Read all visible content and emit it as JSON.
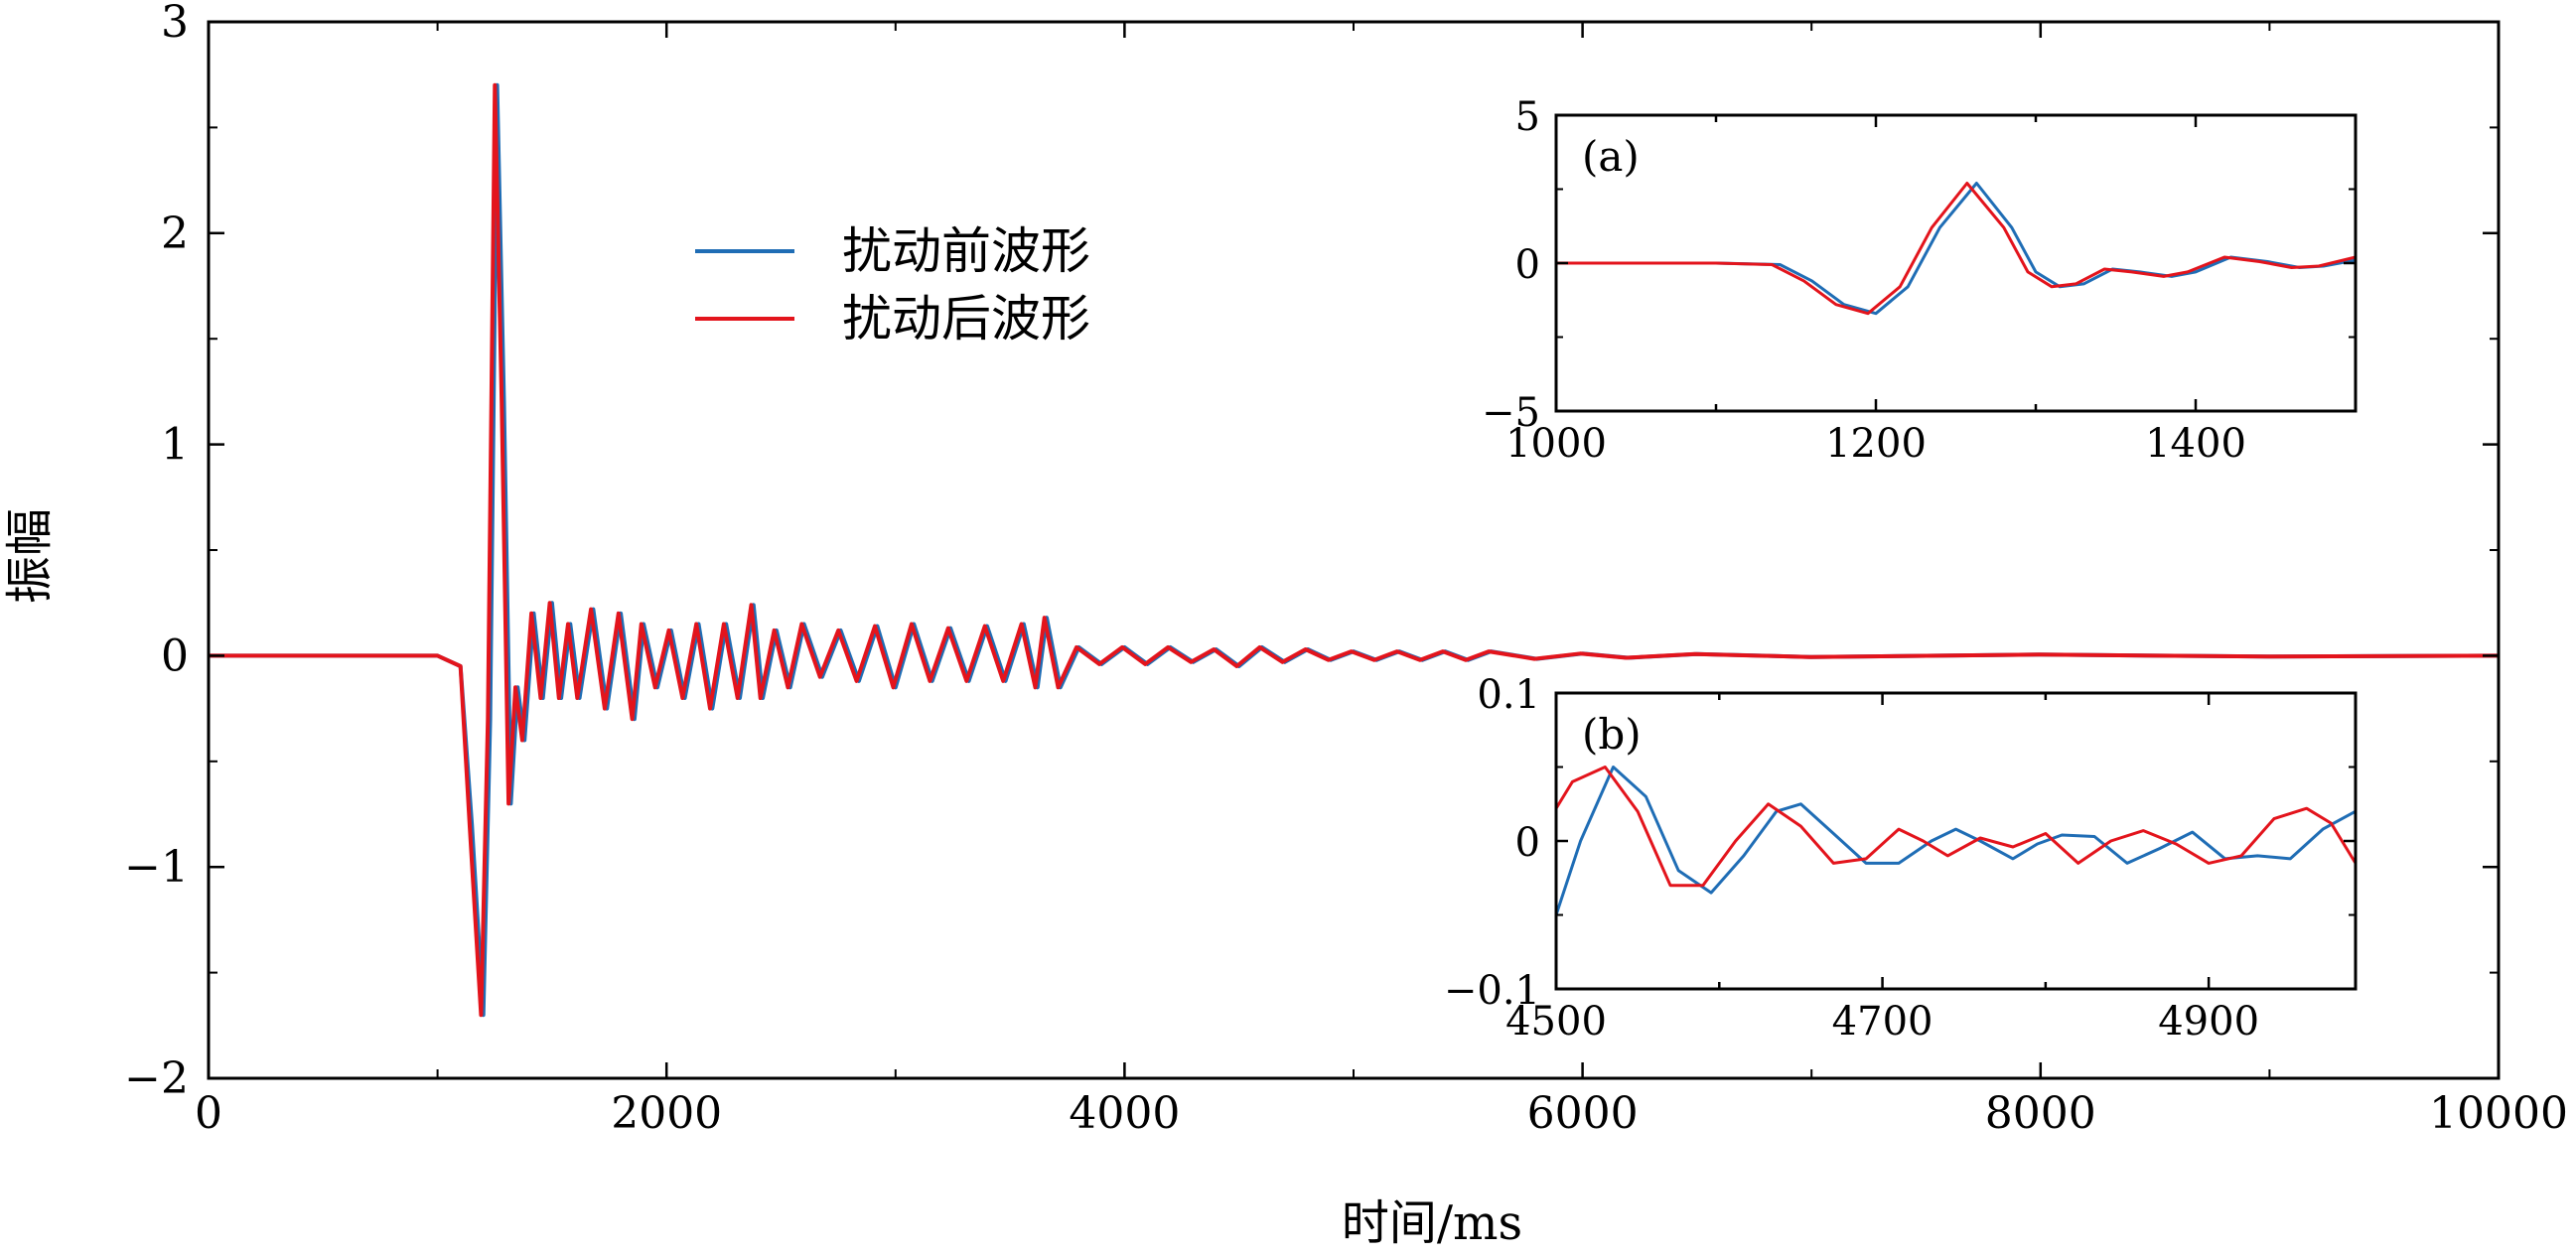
{
  "colors": {
    "before": "#1f6db5",
    "after": "#e3141c",
    "axis": "#000000"
  },
  "chart_data": [
    {
      "id": "main",
      "type": "line",
      "xlabel": "时间/ms",
      "ylabel": "振幅",
      "xlim": [
        0,
        10000
      ],
      "ylim": [
        -2,
        3
      ],
      "xticks": [
        0,
        2000,
        4000,
        6000,
        8000,
        10000
      ],
      "xtick_labels": [
        "0",
        "2000",
        "4000",
        "6000",
        "8000",
        "10000"
      ],
      "yticks": [
        -2,
        -1,
        0,
        1,
        2,
        3
      ],
      "ytick_labels": [
        "−2",
        "−1",
        "0",
        "1",
        "2",
        "3"
      ],
      "grid": false,
      "legend": {
        "position": "upper-center",
        "entries": [
          "扰动前波形",
          "扰动后波形"
        ]
      },
      "series": [
        {
          "name": "扰动前波形",
          "x": [
            0,
            1000,
            1100,
            1150,
            1200,
            1230,
            1260,
            1290,
            1320,
            1350,
            1380,
            1420,
            1460,
            1500,
            1540,
            1580,
            1620,
            1680,
            1740,
            1800,
            1860,
            1900,
            1960,
            2020,
            2080,
            2140,
            2200,
            2260,
            2320,
            2380,
            2420,
            2480,
            2540,
            2600,
            2680,
            2760,
            2840,
            2920,
            3000,
            3080,
            3160,
            3240,
            3320,
            3400,
            3480,
            3560,
            3620,
            3660,
            3720,
            3800,
            3900,
            4000,
            4100,
            4200,
            4300,
            4400,
            4500,
            4600,
            4700,
            4800,
            4900,
            5000,
            5100,
            5200,
            5300,
            5400,
            5500,
            5600,
            5800,
            6000,
            6200,
            6500,
            7000,
            8000,
            9000,
            10000
          ],
          "y": [
            0,
            0,
            -0.05,
            -0.8,
            -1.7,
            -0.3,
            2.7,
            1.2,
            -0.7,
            -0.15,
            -0.4,
            0.2,
            -0.2,
            0.25,
            -0.2,
            0.15,
            -0.2,
            0.22,
            -0.25,
            0.2,
            -0.3,
            0.15,
            -0.15,
            0.12,
            -0.2,
            0.15,
            -0.25,
            0.15,
            -0.2,
            0.24,
            -0.2,
            0.12,
            -0.15,
            0.15,
            -0.1,
            0.12,
            -0.12,
            0.14,
            -0.15,
            0.15,
            -0.12,
            0.13,
            -0.12,
            0.14,
            -0.12,
            0.15,
            -0.15,
            0.18,
            -0.15,
            0.04,
            -0.04,
            0.04,
            -0.04,
            0.04,
            -0.03,
            0.03,
            -0.05,
            0.04,
            -0.03,
            0.03,
            -0.02,
            0.02,
            -0.02,
            0.02,
            -0.02,
            0.02,
            -0.02,
            0.02,
            -0.015,
            0.01,
            -0.01,
            0.008,
            -0.006,
            0.005,
            -0.004,
            0
          ]
        },
        {
          "name": "扰动后波形",
          "x": [
            0,
            1000,
            1100,
            1140,
            1190,
            1220,
            1250,
            1280,
            1310,
            1340,
            1370,
            1410,
            1450,
            1490,
            1530,
            1570,
            1610,
            1670,
            1730,
            1790,
            1850,
            1890,
            1950,
            2010,
            2070,
            2130,
            2190,
            2250,
            2310,
            2370,
            2410,
            2470,
            2530,
            2590,
            2670,
            2750,
            2830,
            2910,
            2990,
            3070,
            3150,
            3230,
            3310,
            3390,
            3470,
            3550,
            3610,
            3650,
            3710,
            3790,
            3890,
            3990,
            4090,
            4190,
            4290,
            4390,
            4490,
            4590,
            4690,
            4790,
            4890,
            4990,
            5090,
            5190,
            5290,
            5390,
            5490,
            5590,
            5790,
            5990,
            6190,
            6490,
            6990,
            7990,
            8990,
            10000
          ],
          "y": [
            0,
            0,
            -0.05,
            -0.8,
            -1.7,
            -0.3,
            2.7,
            1.2,
            -0.7,
            -0.15,
            -0.4,
            0.2,
            -0.2,
            0.25,
            -0.2,
            0.15,
            -0.2,
            0.22,
            -0.25,
            0.2,
            -0.3,
            0.15,
            -0.15,
            0.12,
            -0.2,
            0.15,
            -0.25,
            0.15,
            -0.2,
            0.24,
            -0.2,
            0.12,
            -0.15,
            0.15,
            -0.1,
            0.12,
            -0.12,
            0.14,
            -0.15,
            0.15,
            -0.12,
            0.13,
            -0.12,
            0.14,
            -0.12,
            0.15,
            -0.15,
            0.18,
            -0.15,
            0.04,
            -0.04,
            0.04,
            -0.04,
            0.04,
            -0.03,
            0.03,
            -0.05,
            0.04,
            -0.03,
            0.03,
            -0.02,
            0.02,
            -0.02,
            0.02,
            -0.02,
            0.02,
            -0.02,
            0.02,
            -0.015,
            0.01,
            -0.01,
            0.008,
            -0.006,
            0.005,
            -0.004,
            0
          ]
        }
      ]
    },
    {
      "id": "inset-a",
      "type": "line",
      "label": "(a)",
      "xlim": [
        1000,
        1500
      ],
      "ylim": [
        -5,
        5
      ],
      "xticks": [
        1000,
        1100,
        1200,
        1300,
        1400,
        1500
      ],
      "xtick_labels": [
        "1000",
        "",
        "1200",
        "",
        "1400",
        ""
      ],
      "yticks": [
        -5,
        0,
        5
      ],
      "ytick_labels": [
        "−5",
        "0",
        "5"
      ],
      "series": [
        {
          "name": "扰动前波形",
          "x": [
            1000,
            1100,
            1140,
            1160,
            1180,
            1200,
            1220,
            1240,
            1263,
            1285,
            1300,
            1315,
            1330,
            1348,
            1365,
            1385,
            1400,
            1422,
            1445,
            1465,
            1480,
            1500
          ],
          "y": [
            0,
            0,
            -0.05,
            -0.6,
            -1.4,
            -1.7,
            -0.8,
            1.2,
            2.7,
            1.2,
            -0.3,
            -0.8,
            -0.7,
            -0.2,
            -0.3,
            -0.45,
            -0.3,
            0.2,
            0.05,
            -0.15,
            -0.1,
            0.1
          ]
        },
        {
          "name": "扰动后波形",
          "x": [
            1000,
            1100,
            1135,
            1155,
            1175,
            1195,
            1215,
            1235,
            1257,
            1280,
            1295,
            1310,
            1325,
            1343,
            1360,
            1380,
            1395,
            1418,
            1440,
            1460,
            1477,
            1500
          ],
          "y": [
            0,
            0,
            -0.05,
            -0.6,
            -1.4,
            -1.7,
            -0.8,
            1.2,
            2.7,
            1.2,
            -0.3,
            -0.8,
            -0.7,
            -0.2,
            -0.3,
            -0.45,
            -0.3,
            0.2,
            0.05,
            -0.15,
            -0.1,
            0.2
          ]
        }
      ]
    },
    {
      "id": "inset-b",
      "type": "line",
      "label": "(b)",
      "xlim": [
        4500,
        4990
      ],
      "ylim": [
        -0.1,
        0.1
      ],
      "xticks": [
        4500,
        4600,
        4700,
        4800,
        4900
      ],
      "xtick_labels": [
        "4500",
        "",
        "4700",
        "",
        "4900"
      ],
      "yticks": [
        -0.1,
        0,
        0.1
      ],
      "ytick_labels": [
        "−0.1",
        "0",
        "0.1"
      ],
      "series": [
        {
          "name": "扰动前波形",
          "x": [
            4500,
            4515,
            4535,
            4555,
            4575,
            4595,
            4615,
            4635,
            4650,
            4670,
            4690,
            4710,
            4730,
            4745,
            4760,
            4780,
            4795,
            4810,
            4830,
            4850,
            4870,
            4890,
            4910,
            4930,
            4950,
            4970,
            4990
          ],
          "y": [
            -0.05,
            0.0,
            0.05,
            0.03,
            -0.02,
            -0.035,
            -0.01,
            0.02,
            0.025,
            0.005,
            -0.015,
            -0.015,
            0.0,
            0.008,
            0.0,
            -0.012,
            -0.002,
            0.004,
            0.003,
            -0.015,
            -0.005,
            0.006,
            -0.012,
            -0.01,
            -0.012,
            0.008,
            0.02
          ]
        },
        {
          "name": "扰动后波形",
          "x": [
            4500,
            4510,
            4530,
            4550,
            4570,
            4590,
            4610,
            4630,
            4650,
            4670,
            4690,
            4710,
            4725,
            4740,
            4760,
            4780,
            4800,
            4820,
            4840,
            4860,
            4880,
            4900,
            4920,
            4940,
            4960,
            4975,
            4990
          ],
          "y": [
            0.022,
            0.04,
            0.05,
            0.02,
            -0.03,
            -0.03,
            0.0,
            0.025,
            0.01,
            -0.015,
            -0.012,
            0.008,
            0.0,
            -0.01,
            0.002,
            -0.004,
            0.005,
            -0.015,
            0.0,
            0.007,
            -0.002,
            -0.015,
            -0.01,
            0.015,
            0.022,
            0.012,
            -0.015
          ]
        }
      ]
    }
  ]
}
